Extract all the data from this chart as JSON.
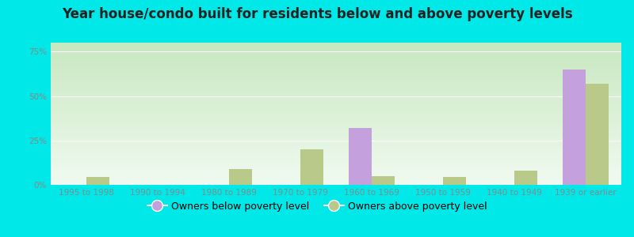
{
  "title": "Year house/condo built for residents below and above poverty levels",
  "categories": [
    "1995 to 1998",
    "1990 to 1994",
    "1980 to 1989",
    "1970 to 1979",
    "1960 to 1969",
    "1950 to 1959",
    "1940 to 1949",
    "1939 or earlier"
  ],
  "below_poverty": [
    0.0,
    0.0,
    0.0,
    0.0,
    32.0,
    0.0,
    0.0,
    65.0
  ],
  "above_poverty": [
    4.5,
    0.0,
    9.0,
    20.0,
    5.0,
    4.5,
    8.0,
    57.0
  ],
  "color_below": "#c4a0dc",
  "color_above": "#b8c98a",
  "ylim_max": 80,
  "yticks": [
    0,
    25,
    50,
    75
  ],
  "ytick_labels": [
    "0%",
    "25%",
    "50%",
    "75%"
  ],
  "legend_below": "Owners below poverty level",
  "legend_above": "Owners above poverty level",
  "bg_grad_top": "#c8e8c0",
  "bg_grad_bottom": "#f0faf0",
  "outer_bg": "#00e8e8",
  "title_fontsize": 12,
  "tick_fontsize": 7.5,
  "legend_fontsize": 9,
  "bar_width": 0.32
}
